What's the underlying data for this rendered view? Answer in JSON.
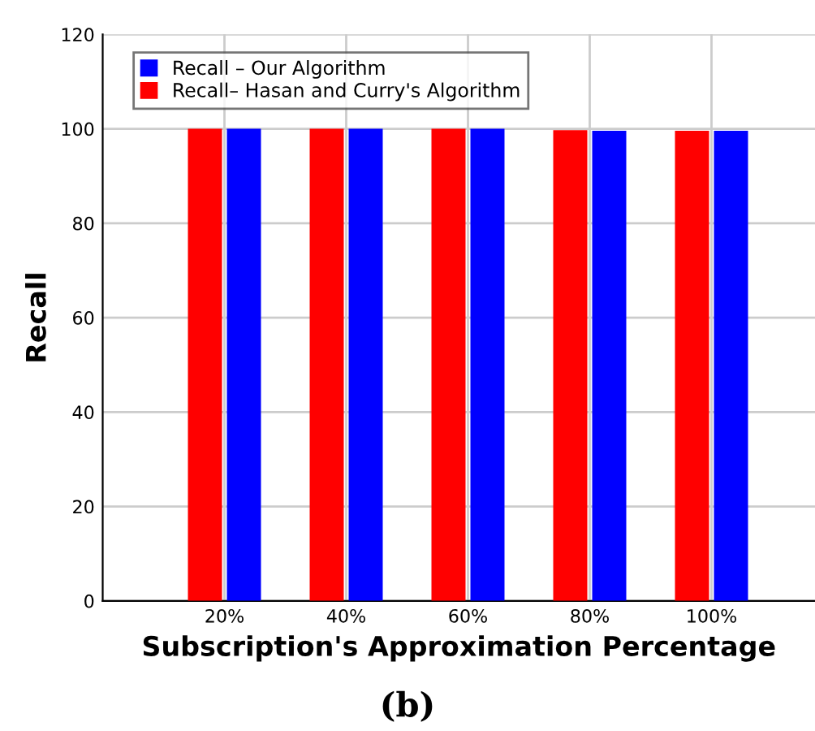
{
  "chart_data": {
    "type": "bar",
    "xlabel": "Subscription's Approximation Percentage",
    "ylabel": "Recall",
    "categories": [
      "20%",
      "40%",
      "60%",
      "80%",
      "100%"
    ],
    "series": [
      {
        "name": "Recall– Hasan and Curry's Algorithm",
        "color": "#ff0000",
        "values": [
          100,
          100,
          100,
          99.7,
          99.6
        ]
      },
      {
        "name": "Recall – Our Algorithm",
        "color": "#0000ff",
        "values": [
          100,
          100,
          100,
          99.6,
          99.6
        ]
      }
    ],
    "ylim": [
      0,
      120
    ],
    "yticks": [
      0,
      20,
      40,
      60,
      80,
      100,
      120
    ],
    "grid": true,
    "legend": "top left",
    "annotations": [
      "(b)"
    ]
  }
}
